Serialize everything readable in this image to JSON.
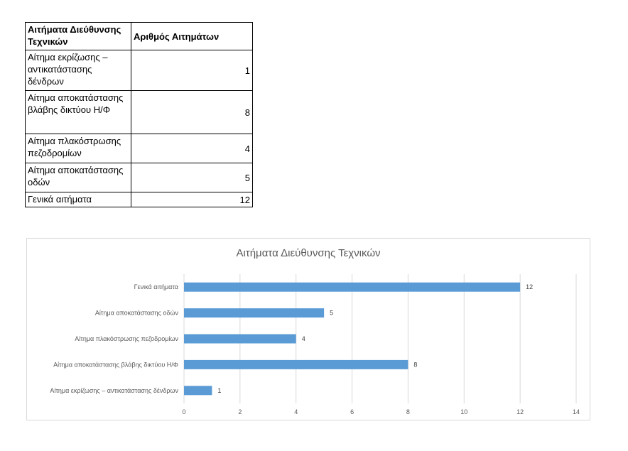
{
  "table": {
    "header": {
      "col1": "Αιτήματα Διεύθυνσης Τεχνικών",
      "col2": "Αριθμός Αιτημάτων"
    },
    "rows": [
      {
        "label": "Αίτημα εκρίζωσης – αντικατάστασης δένδρων",
        "value": "1"
      },
      {
        "label": "Αίτημα αποκατάστασης βλάβης δικτύου Η/Φ",
        "value": "8"
      },
      {
        "label": "Αίτημα πλακόστρωσης πεζοδρομίων",
        "value": "4"
      },
      {
        "label": "Αίτημα αποκατάστασης οδών",
        "value": "5"
      },
      {
        "label": "Γενικά αιτήματα",
        "value": "12"
      }
    ]
  },
  "chart_data": {
    "type": "bar",
    "orientation": "horizontal",
    "title": "Αιτήματα Διεύθυνσης Τεχνικών",
    "categories": [
      "Αίτημα εκρίζωσης – αντικατάστασης δένδρων",
      "Αίτημα αποκατάστασης βλάβης δικτύου Η/Φ",
      "Αίτημα πλακόστρωσης πεζοδρομίων",
      "Αίτημα αποκατάστασης οδών",
      "Γενικά αιτήματα"
    ],
    "values": [
      1,
      8,
      4,
      5,
      12
    ],
    "xlim": [
      0,
      14
    ],
    "xticks": [
      0,
      2,
      4,
      6,
      8,
      10,
      12,
      14
    ],
    "grid": true,
    "legend": "none",
    "data_labels": true,
    "bar_color": "#5b9bd5"
  }
}
